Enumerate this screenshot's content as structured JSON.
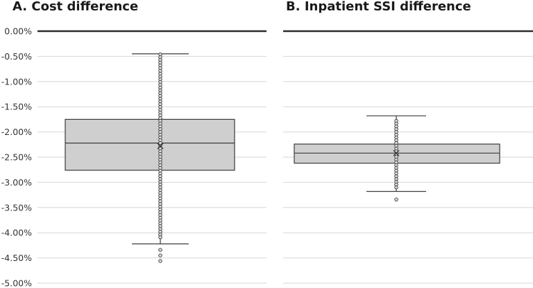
{
  "chart_data": [
    {
      "type": "box",
      "title": "A. Cost difference",
      "ylim": [
        -5.0,
        0.0
      ],
      "yticks": [
        0.0,
        -0.5,
        -1.0,
        -1.5,
        -2.0,
        -2.5,
        -3.0,
        -3.5,
        -4.0,
        -4.5,
        -5.0
      ],
      "ytick_labels": [
        "0.00%",
        "-0.50%",
        "-1.00%",
        "-1.50%",
        "-2.00%",
        "-2.50%",
        "-3.00%",
        "-3.50%",
        "-4.00%",
        "-4.50%",
        "-5.00%"
      ],
      "box": {
        "whisker_high": -0.45,
        "q3": -1.75,
        "median": -2.22,
        "mean": -2.28,
        "q1": -2.76,
        "whisker_low": -4.22
      },
      "outliers_low": [
        -4.34,
        -4.45,
        -4.56
      ],
      "point_range": [
        -0.46,
        -4.12
      ]
    },
    {
      "type": "box",
      "title": "B. Inpatient SSI difference",
      "ylim": [
        -5.0,
        0.0
      ],
      "box": {
        "whisker_high": -1.68,
        "q3": -2.24,
        "median": -2.42,
        "mean": -2.42,
        "q1": -2.62,
        "whisker_low": -3.18
      },
      "outliers_low": [
        -3.34
      ],
      "point_range": [
        -1.78,
        -3.14
      ]
    }
  ]
}
